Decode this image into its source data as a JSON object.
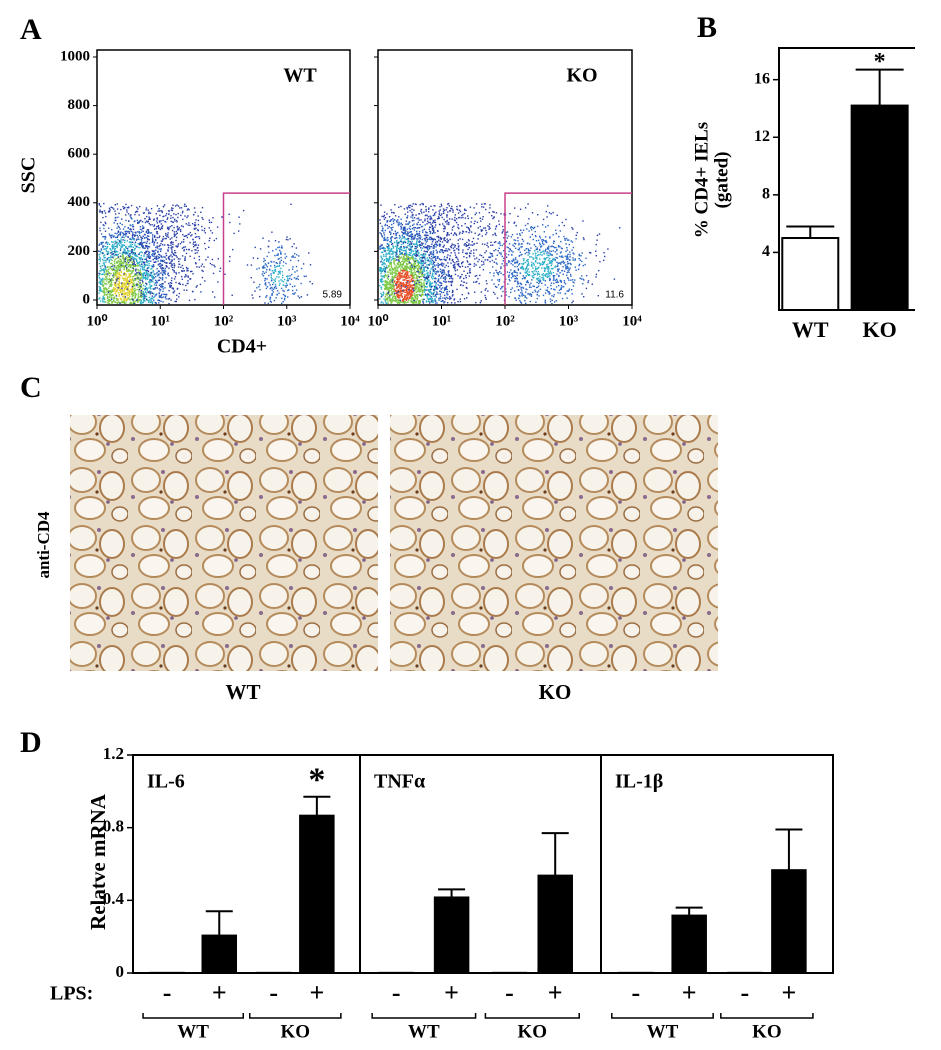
{
  "panel_labels": [
    "A",
    "B",
    "C",
    "D"
  ],
  "panel_c": {
    "ylabel": "anti-CD4",
    "labels": [
      "WT",
      "KO"
    ]
  },
  "chart_data": [
    {
      "type": "flow",
      "title": "WT",
      "xlabel": "CD4+",
      "ylabel": "SSC",
      "log_x": true,
      "xlim": [
        1,
        10000
      ],
      "xticks": [
        {
          "value": 1,
          "label": "10⁰"
        },
        {
          "value": 10,
          "label": "10¹"
        },
        {
          "value": 100,
          "label": "10²"
        },
        {
          "value": 1000,
          "label": "10³"
        },
        {
          "value": 10000,
          "label": "10⁴"
        }
      ],
      "ylim": [
        0,
        1000
      ],
      "yticks": [
        0,
        200,
        400,
        600,
        800,
        1000
      ],
      "gate": {
        "x": [
          100,
          10000
        ],
        "y": [
          0,
          440
        ]
      },
      "gate_color": "#c8408c",
      "gate_percent": 5.89
    },
    {
      "type": "flow",
      "title": "KO",
      "log_x": true,
      "xlim": [
        1,
        10000
      ],
      "xticks": [
        {
          "value": 1,
          "label": "10⁰"
        },
        {
          "value": 10,
          "label": "10¹"
        },
        {
          "value": 100,
          "label": "10²"
        },
        {
          "value": 1000,
          "label": "10³"
        },
        {
          "value": 10000,
          "label": "10⁴"
        }
      ],
      "ylim": [
        0,
        1000
      ],
      "yticks": [
        0,
        200,
        400,
        600,
        800,
        1000
      ],
      "gate": {
        "x": [
          100,
          10000
        ],
        "y": [
          0,
          440
        ]
      },
      "gate_color": "#c8408c",
      "gate_percent": 11.6
    },
    {
      "type": "bar",
      "ylabel": [
        "% CD4+ IELs",
        "(gated)"
      ],
      "categories": [
        "WT",
        "KO"
      ],
      "values": [
        5.0,
        14.2
      ],
      "errors": [
        0.8,
        2.5
      ],
      "colors": [
        "#ffffff",
        "#000000"
      ],
      "significance": [
        null,
        "*"
      ],
      "ylim": [
        0,
        18.2
      ],
      "yticks": [
        4,
        8,
        12,
        16
      ]
    },
    {
      "type": "bar",
      "title": "IL-6",
      "ylabel": "Relatve mRNA",
      "x_prefix": "LPS:",
      "categories": [
        "-",
        "+",
        "-",
        "+"
      ],
      "groups": [
        "WT",
        "KO"
      ],
      "values": [
        0.005,
        0.21,
        0.005,
        0.87
      ],
      "errors": [
        null,
        0.13,
        null,
        0.1
      ],
      "color": "#000000",
      "significance": [
        null,
        null,
        null,
        "*"
      ],
      "ylim": [
        0,
        1.2
      ],
      "yticks": [
        0,
        0.4,
        0.8,
        1.2
      ]
    },
    {
      "type": "bar",
      "title": "TNFα",
      "categories": [
        "-",
        "+",
        "-",
        "+"
      ],
      "groups": [
        "WT",
        "KO"
      ],
      "values": [
        0.005,
        0.42,
        0.005,
        0.54
      ],
      "errors": [
        null,
        0.04,
        null,
        0.23
      ],
      "color": "#000000",
      "ylim": [
        0,
        1.2
      ]
    },
    {
      "type": "bar",
      "title": "IL-1β",
      "categories": [
        "-",
        "+",
        "-",
        "+"
      ],
      "groups": [
        "WT",
        "KO"
      ],
      "values": [
        0.005,
        0.32,
        0.005,
        0.57
      ],
      "errors": [
        null,
        0.04,
        null,
        0.22
      ],
      "color": "#000000",
      "ylim": [
        0,
        1.2
      ]
    }
  ]
}
